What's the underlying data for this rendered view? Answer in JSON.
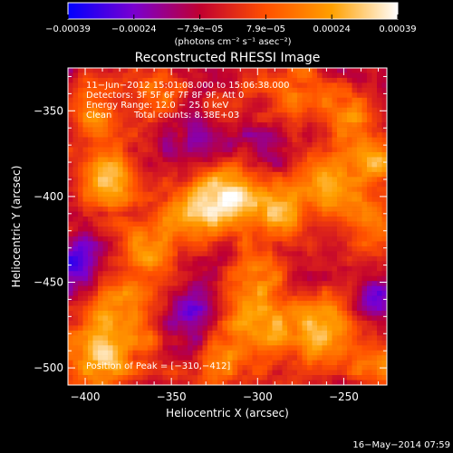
{
  "chart_data": {
    "type": "heatmap",
    "title": "Reconstructed RHESSI Image",
    "xlabel": "Heliocentric X (arcsec)",
    "ylabel": "Heliocentric Y (arcsec)",
    "xlim": [
      -410,
      -225
    ],
    "ylim": [
      -510,
      -325
    ],
    "x_ticks": [
      -400,
      -350,
      -300,
      -250
    ],
    "x_tick_labels": [
      "−400",
      "−350",
      "−300",
      "−250"
    ],
    "y_ticks": [
      -350,
      -400,
      -450,
      -500
    ],
    "y_tick_labels": [
      "−350",
      "−400",
      "−450",
      "−500"
    ],
    "colorbar": {
      "range": [
        -0.00039,
        0.00039
      ],
      "tick_labels": [
        "−0.00039",
        "−0.00024",
        "−7.9e−05",
        "7.9e−05",
        "0.00024",
        "0.00039"
      ],
      "label": "(photons cm⁻² s⁻¹ asec⁻²)",
      "colors": [
        "#0000ff",
        "#7a00d0",
        "#c00030",
        "#ff5000",
        "#ffa000",
        "#ffffff"
      ]
    },
    "annotations": {
      "time": "11−Jun−2012 15:01:08.000 to 15:06:38.000",
      "detectors": "Detectors: 3F 5F 6F 7F 8F 9F, Att 0",
      "energy": "Energy Range: 12.0 − 25.0 keV",
      "method": "Clean",
      "counts": "Total counts: 8.38E+03",
      "peak": "Position of Peak = [−310,−412]"
    },
    "peak_position": [
      -310,
      -412
    ],
    "sources": [
      {
        "x": -318,
        "y": -398,
        "amp": 1.0,
        "sigma": 14
      },
      {
        "x": -290,
        "y": -410,
        "amp": 0.75,
        "sigma": 11
      },
      {
        "x": -340,
        "y": -412,
        "amp": 0.7,
        "sigma": 13
      },
      {
        "x": -262,
        "y": -392,
        "amp": 0.8,
        "sigma": 14
      },
      {
        "x": -232,
        "y": -378,
        "amp": 0.85,
        "sigma": 10
      },
      {
        "x": -232,
        "y": -415,
        "amp": 0.55,
        "sigma": 12
      },
      {
        "x": -388,
        "y": -392,
        "amp": 0.75,
        "sigma": 14
      },
      {
        "x": -395,
        "y": -350,
        "amp": 0.5,
        "sigma": 12
      },
      {
        "x": -360,
        "y": -340,
        "amp": 0.45,
        "sigma": 12
      },
      {
        "x": -380,
        "y": -470,
        "amp": 0.7,
        "sigma": 18
      },
      {
        "x": -392,
        "y": -495,
        "amp": 0.75,
        "sigma": 12
      },
      {
        "x": -300,
        "y": -475,
        "amp": 0.75,
        "sigma": 16
      },
      {
        "x": -262,
        "y": -478,
        "amp": 0.8,
        "sigma": 14
      },
      {
        "x": -325,
        "y": -500,
        "amp": 0.55,
        "sigma": 10
      },
      {
        "x": -300,
        "y": -445,
        "amp": 0.5,
        "sigma": 10
      },
      {
        "x": -280,
        "y": -338,
        "amp": 0.55,
        "sigma": 12
      },
      {
        "x": -250,
        "y": -352,
        "amp": 0.6,
        "sigma": 10
      },
      {
        "x": -320,
        "y": -352,
        "amp": 0.35,
        "sigma": 10
      },
      {
        "x": -365,
        "y": -430,
        "amp": 0.55,
        "sigma": 10
      },
      {
        "x": -230,
        "y": -500,
        "amp": 0.55,
        "sigma": 10
      },
      {
        "x": -340,
        "y": -470,
        "amp": -0.5,
        "sigma": 12
      },
      {
        "x": -330,
        "y": -370,
        "amp": -0.5,
        "sigma": 12
      },
      {
        "x": -405,
        "y": -440,
        "amp": -0.6,
        "sigma": 12
      },
      {
        "x": -230,
        "y": -458,
        "amp": -0.45,
        "sigma": 10
      },
      {
        "x": -295,
        "y": -372,
        "amp": -0.4,
        "sigma": 10
      }
    ],
    "noise_amp": 0.28
  },
  "footer": {
    "timestamp": "16−May−2014 07:59"
  }
}
